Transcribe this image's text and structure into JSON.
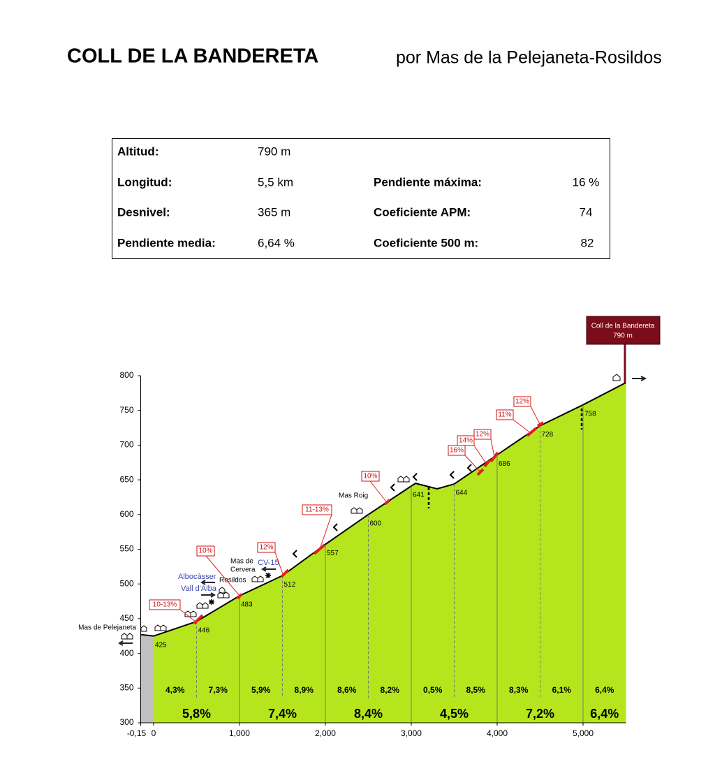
{
  "header": {
    "title": "COLL DE LA BANDERETA",
    "subtitle": "por Mas de la Pelejaneta-Rosildos"
  },
  "stats": {
    "left": [
      {
        "label": "Altitud:",
        "value": "790 m"
      },
      {
        "label": "Longitud:",
        "value": "5,5 km"
      },
      {
        "label": "Desnivel:",
        "value": "365 m"
      },
      {
        "label": "Pendiente media:",
        "value": "6,64 %"
      }
    ],
    "right": [
      {
        "label": "Pendiente máxima:",
        "value": "16 %"
      },
      {
        "label": "Coeficiente APM:",
        "value": "74"
      },
      {
        "label": "Coeficiente 500 m:",
        "value": "82"
      }
    ]
  },
  "chart_data": {
    "type": "area",
    "xlim": [
      -150,
      5500
    ],
    "ylim": [
      300,
      800
    ],
    "xticks": [
      {
        "value": -150,
        "label": "-0,15"
      },
      0,
      {
        "value": 1000,
        "label": "1,000"
      },
      {
        "value": 2000,
        "label": "2,000"
      },
      {
        "value": 3000,
        "label": "3,000"
      },
      {
        "value": 4000,
        "label": "4,000"
      },
      {
        "value": 5000,
        "label": "5,000"
      }
    ],
    "yticks": [
      300,
      350,
      400,
      450,
      500,
      550,
      600,
      650,
      700,
      750,
      800
    ],
    "approach": {
      "x": [
        -150,
        0
      ],
      "values": [
        427,
        425
      ],
      "color": "#c0c0c0"
    },
    "profile": {
      "color": "#b5e61d",
      "x": [
        0,
        500,
        1000,
        1500,
        2000,
        2500,
        3000,
        3050,
        3300,
        3500,
        4000,
        4500,
        5000,
        5500
      ],
      "values": [
        425,
        446,
        483,
        512,
        557,
        600,
        641,
        645,
        637,
        644,
        686,
        728,
        758,
        790
      ],
      "value_labels": [
        "425",
        "446",
        "483",
        "512",
        "557",
        "600",
        "641",
        null,
        null,
        "644",
        "686",
        "728",
        "758",
        "790 m"
      ]
    },
    "gradients": {
      "values": [
        4.3,
        7.3,
        5.9,
        8.9,
        8.6,
        8.2,
        0.5,
        8.5,
        8.3,
        6.1,
        6.4
      ],
      "value_labels": [
        "4,3%",
        "7,3%",
        "5,9%",
        "8,9%",
        "8,6%",
        "8,2%",
        "0,5%",
        "8,5%",
        "8,3%",
        "6,1%",
        "6,4%"
      ]
    },
    "km_gradients": {
      "values": [
        5.8,
        7.4,
        8.4,
        4.5,
        7.2,
        6.4
      ],
      "value_labels": [
        "5,8%",
        "7,4%",
        "8,4%",
        "4,5%",
        "7,2%",
        "6,4%"
      ]
    },
    "summit": "Coll de la Bandereta",
    "places": [
      "Mas de Pelejaneta",
      "Albocàsser",
      "Vall d'Alba",
      "Rosildos",
      "Mas de",
      "Cervera",
      "CV-15",
      "Mas Roig"
    ],
    "steep": [
      "10-13%",
      "10%",
      "12%",
      "11-13%",
      "10%",
      "16%",
      "14%",
      "12%",
      "11%",
      "12%"
    ]
  }
}
